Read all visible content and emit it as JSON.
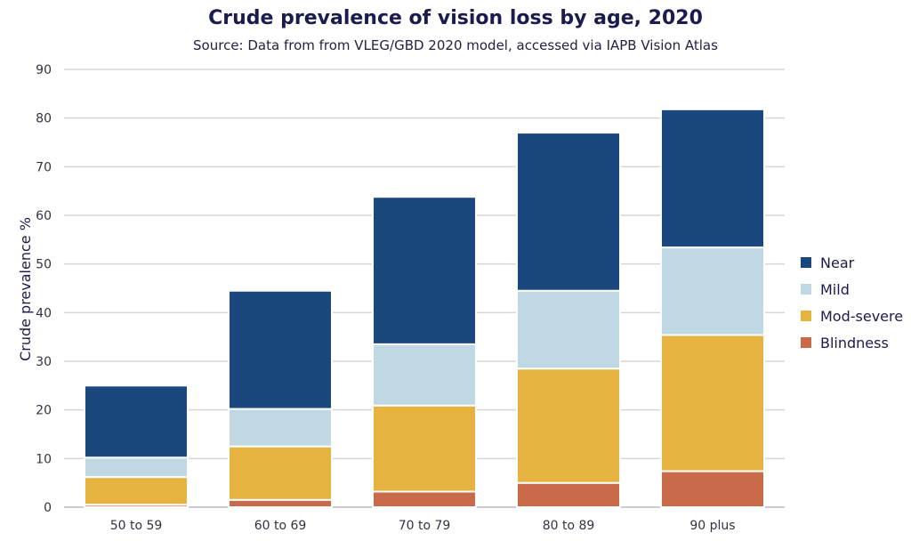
{
  "chart_data": {
    "type": "bar",
    "stacked": true,
    "title": "Crude prevalence of vision loss by age, 2020",
    "subtitle": "Source: Data from from VLEG/GBD 2020 model, accessed via IAPB Vision Atlas",
    "xlabel": "",
    "ylabel": "Crude prevalence %",
    "ylim": [
      0,
      90
    ],
    "yticks": [
      0,
      10,
      20,
      30,
      40,
      50,
      60,
      70,
      80,
      90
    ],
    "grid": true,
    "legend_position": "right",
    "categories": [
      "50 to 59",
      "60 to 69",
      "70 to 79",
      "80 to 89",
      "90 plus"
    ],
    "series": [
      {
        "name": "Blindness",
        "color": "#c96a4a",
        "values": [
          0.5,
          1.5,
          3.2,
          5.0,
          7.4
        ]
      },
      {
        "name": "Mod-severe",
        "color": "#e6b340",
        "values": [
          5.7,
          11.0,
          17.7,
          23.5,
          28.0
        ]
      },
      {
        "name": "Mild",
        "color": "#bfd8e4",
        "values": [
          4.0,
          7.7,
          12.6,
          16.0,
          18.0
        ]
      },
      {
        "name": "Near",
        "color": "#1a477d",
        "values": [
          14.8,
          24.3,
          30.3,
          32.5,
          28.4
        ]
      }
    ],
    "legend_order": [
      "Near",
      "Mild",
      "Mod-severe",
      "Blindness"
    ]
  }
}
